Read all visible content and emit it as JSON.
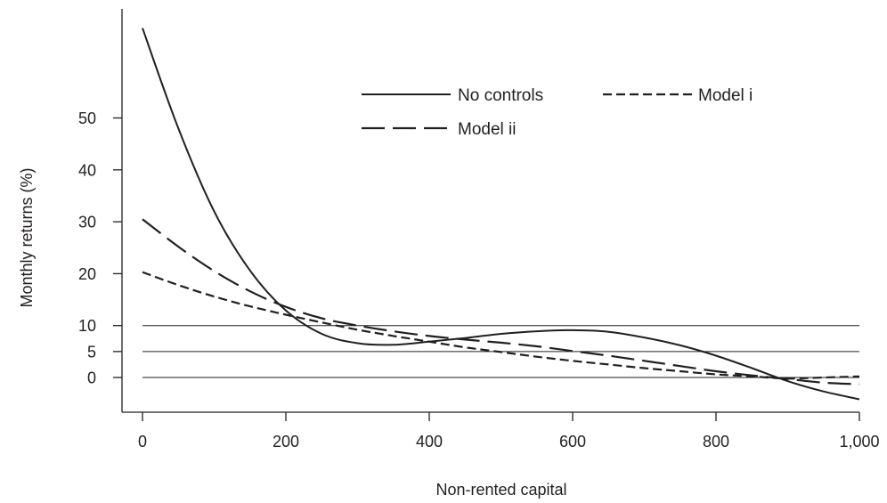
{
  "chart_data": {
    "type": "line",
    "title": "",
    "xlabel": "Non-rented capital",
    "ylabel": "Monthly returns (%)",
    "xlim": [
      0,
      1000
    ],
    "ylim": [
      -7,
      70
    ],
    "x_ticks": [
      0,
      200,
      400,
      600,
      800,
      1000
    ],
    "x_tick_labels": [
      "0",
      "200",
      "400",
      "600",
      "800",
      "1,000"
    ],
    "y_ticks": [
      0,
      5,
      10,
      20,
      30,
      40,
      50
    ],
    "y_tick_labels": [
      "0",
      "5",
      "10",
      "20",
      "30",
      "40",
      "50"
    ],
    "reference_lines_y": [
      0,
      5,
      10
    ],
    "grid": false,
    "legend_position": "top-right",
    "x": [
      0,
      50,
      100,
      150,
      200,
      250,
      300,
      350,
      400,
      450,
      500,
      550,
      600,
      650,
      700,
      750,
      800,
      850,
      900,
      950,
      1000
    ],
    "series": [
      {
        "name": "No controls",
        "dash": "solid",
        "values": [
          67.3,
          48.0,
          32.0,
          20.6,
          12.9,
          8.4,
          6.6,
          6.3,
          6.9,
          7.6,
          8.4,
          8.9,
          9.1,
          8.8,
          7.7,
          6.2,
          4.2,
          1.8,
          -0.7,
          -2.7,
          -4.2
        ]
      },
      {
        "name": "Model i",
        "dash": "short",
        "values": [
          20.3,
          17.8,
          15.6,
          13.7,
          12.1,
          10.6,
          9.2,
          8.0,
          6.9,
          5.8,
          4.9,
          4.0,
          3.2,
          2.5,
          1.8,
          1.2,
          0.6,
          0.2,
          -0.2,
          0.0,
          0.2
        ]
      },
      {
        "name": "Model ii",
        "dash": "long",
        "values": [
          30.5,
          25.2,
          20.5,
          16.6,
          13.6,
          11.4,
          10.0,
          8.9,
          8.0,
          7.3,
          6.7,
          6.0,
          5.1,
          4.2,
          3.2,
          2.2,
          1.2,
          0.4,
          -0.3,
          -1.0,
          -1.3
        ]
      }
    ]
  }
}
